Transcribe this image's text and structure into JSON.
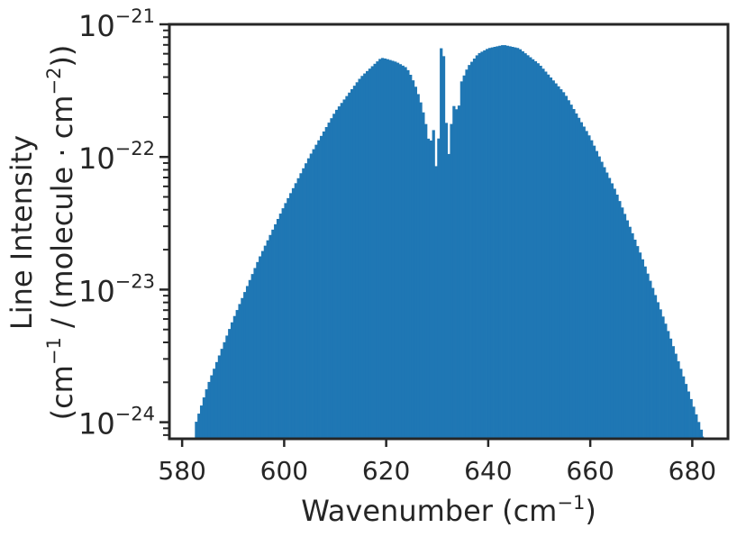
{
  "chart_data": {
    "type": "bar",
    "title": "",
    "xlabel": "Wavenumber (cm",
    "xlabel_sup": "−1",
    "xlabel_end": ")",
    "ylabel_line1": "Line Intensity",
    "ylabel_line2_a": "(cm",
    "ylabel_line2_sup1": "−1",
    "ylabel_line2_b": " / (molecule · cm",
    "ylabel_line2_sup2": "−2",
    "ylabel_line2_c": "))",
    "x_scale": "linear",
    "y_scale": "log",
    "xlim": [
      577.5,
      687.0
    ],
    "ylim": [
      7.5e-25,
      1e-21
    ],
    "xticks": [
      580,
      600,
      620,
      640,
      660,
      680
    ],
    "yticks": [
      {
        "value": 1e-24,
        "base": "10",
        "exp": "−24"
      },
      {
        "value": 1e-23,
        "base": "10",
        "exp": "−23"
      },
      {
        "value": 1e-22,
        "base": "10",
        "exp": "−22"
      },
      {
        "value": 1e-21,
        "base": "10",
        "exp": "−21"
      }
    ],
    "grid": false,
    "legend": "none",
    "bar_color": "#1f77b4",
    "bar_envelope": [
      [
        582.5,
        9.4e-25
      ],
      [
        585,
        1.9e-24
      ],
      [
        590,
        6e-24
      ],
      [
        595,
        1.7e-23
      ],
      [
        600,
        4.3e-23
      ],
      [
        605,
        1.02e-22
      ],
      [
        610,
        2.2e-22
      ],
      [
        615,
        4e-22
      ],
      [
        619,
        5.6e-22
      ],
      [
        620,
        5.5e-22
      ],
      [
        622,
        5.2e-22
      ],
      [
        624,
        4.7e-22
      ],
      [
        625,
        4e-22
      ],
      [
        626,
        3.2e-22
      ],
      [
        627,
        2.4e-22
      ],
      [
        628,
        1.6e-22
      ],
      [
        628.5,
        1.18e-22
      ],
      [
        629.2,
        1.65e-22
      ],
      [
        629.6,
        1.25e-22
      ],
      [
        630.0,
        4.5e-23
      ],
      [
        630.6,
        6.6e-22
      ],
      [
        631.2,
        6.6e-22
      ],
      [
        631.6,
        2.2e-22
      ],
      [
        632.2,
        1e-22
      ],
      [
        633.0,
        2.3e-22
      ],
      [
        633.6,
        2.6e-22
      ],
      [
        634.0,
        1.85e-22
      ],
      [
        634.6,
        3.6e-22
      ],
      [
        636,
        4.8e-22
      ],
      [
        638,
        6e-22
      ],
      [
        640,
        6.6e-22
      ],
      [
        643,
        7e-22
      ],
      [
        646,
        6.6e-22
      ],
      [
        650,
        5e-22
      ],
      [
        655,
        3e-22
      ],
      [
        660,
        1.4e-22
      ],
      [
        665,
        5.5e-23
      ],
      [
        670,
        1.8e-23
      ],
      [
        675,
        5.2e-24
      ],
      [
        680,
        1.4e-24
      ],
      [
        682.2,
        7.8e-25
      ]
    ]
  }
}
